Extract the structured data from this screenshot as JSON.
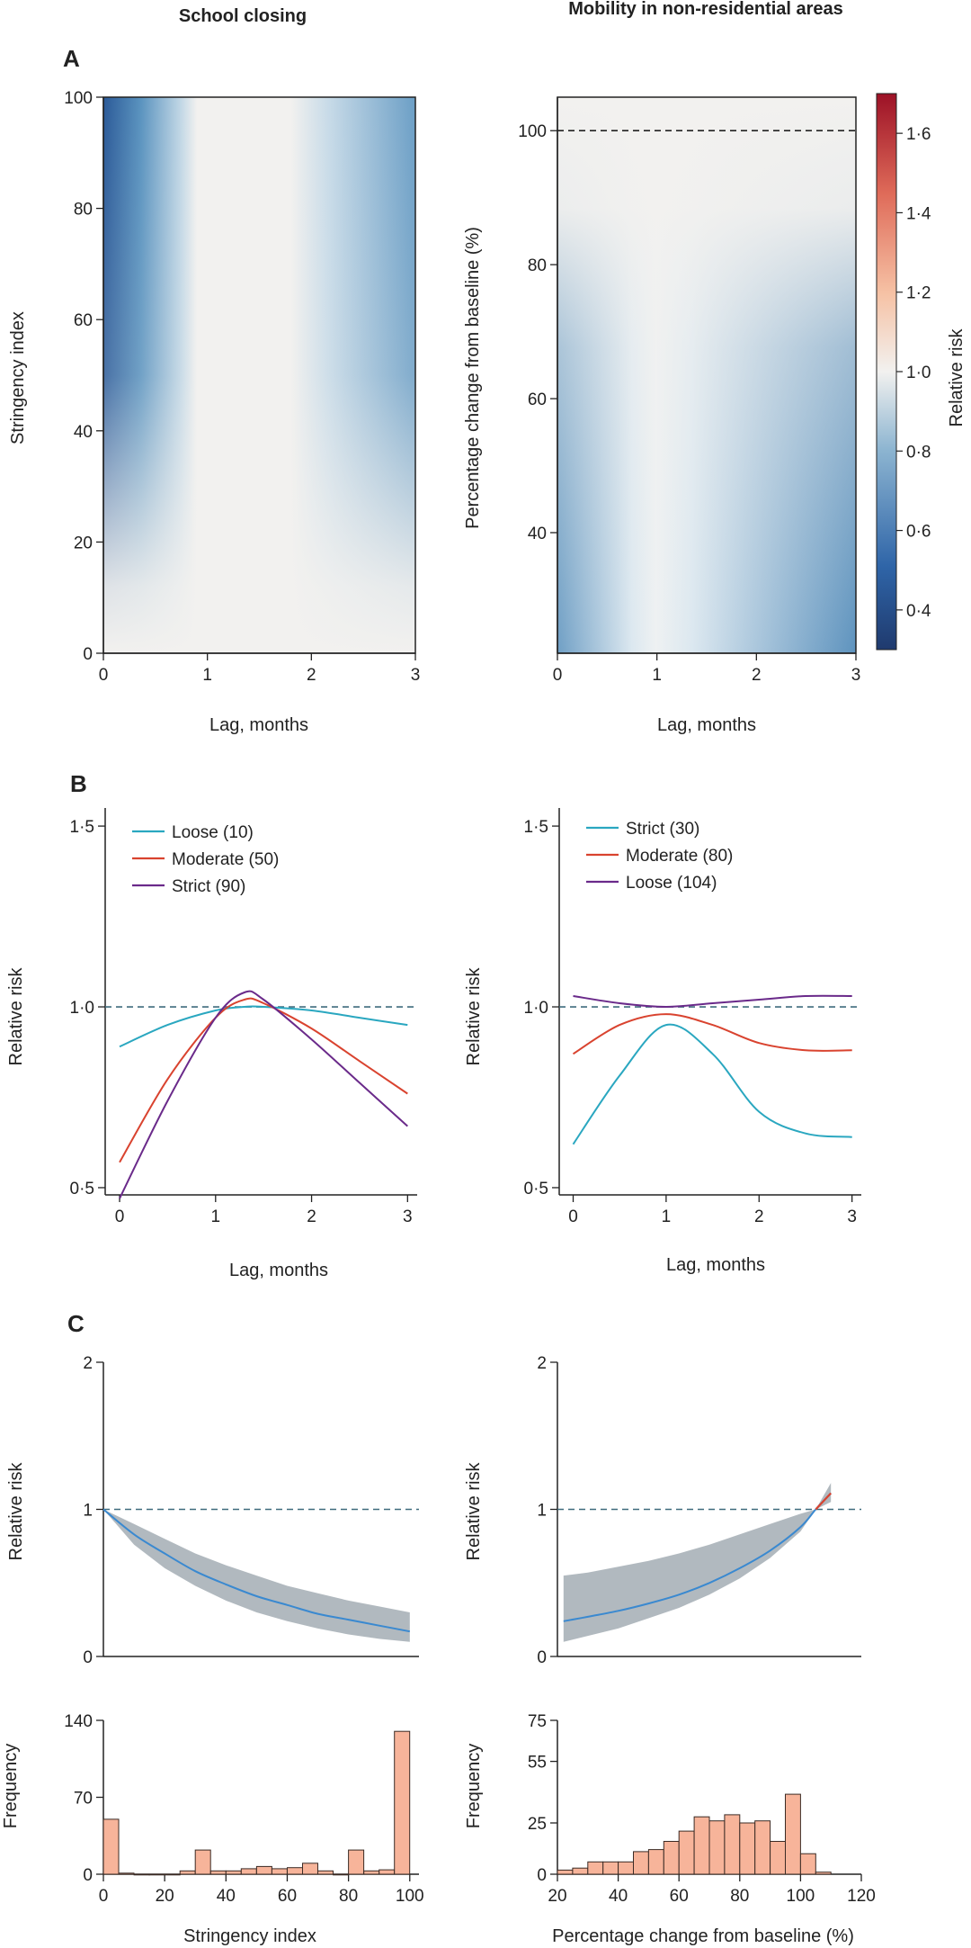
{
  "headers": {
    "left": "School closing",
    "right": "Mobility in non-residential areas"
  },
  "panels": {
    "a": "A",
    "b": "B",
    "c": "C"
  },
  "colors": {
    "neutral": "#f2f1ef",
    "deep_blue": "#1f3a6e",
    "mid_blue": "#5a93bf",
    "light_blue": "#dbe7ef",
    "deep_red": "#a4172b",
    "teal": "#2aa7c0",
    "red": "#d9432f",
    "purple": "#6a2a8a",
    "band": "#a9b1b8",
    "ci_line": "#3a89d0",
    "hist_fill": "#f7b49a",
    "hist_edge": "#3b2b25"
  },
  "chart_data": [
    {
      "id": "A-left",
      "type": "heatmap",
      "title": "School closing",
      "xlabel": "Lag, months",
      "ylabel": "Stringency index",
      "xlim": [
        0,
        3
      ],
      "ylim": [
        0,
        100
      ],
      "xticks": [
        "0",
        "1",
        "2",
        "3"
      ],
      "yticks": [
        "0",
        "20",
        "40",
        "60",
        "80",
        "100"
      ],
      "description_values": {
        "min_relative_risk": 0.3,
        "max_relative_risk": 1.0
      }
    },
    {
      "id": "A-right",
      "type": "heatmap",
      "title": "Mobility in non-residential areas",
      "xlabel": "Lag, months",
      "ylabel": "Percentage change from  baseline  (%)",
      "xlim": [
        0,
        3
      ],
      "ylim": [
        22,
        105
      ],
      "xticks": [
        "0",
        "1",
        "2",
        "3"
      ],
      "yticks": [
        "40",
        "60",
        "80",
        "100"
      ],
      "reference_line": 100,
      "colorbar": {
        "label": "Relative risk",
        "range": [
          0.3,
          1.7
        ],
        "ticks": [
          "0·4",
          "0·6",
          "0·8",
          "1·0",
          "1·2",
          "1·4",
          "1·6"
        ]
      }
    },
    {
      "id": "B-left",
      "type": "line",
      "xlabel": "Lag, months",
      "ylabel": "Relative risk",
      "xlim": [
        -0.15,
        3.1
      ],
      "ylim": [
        0.48,
        1.55
      ],
      "xticks": [
        "0",
        "1",
        "2",
        "3"
      ],
      "yticks": [
        "0·5",
        "1·0",
        "1·5"
      ],
      "reference_line": 1.0,
      "x": [
        0,
        0.5,
        1,
        1.3,
        1.5,
        2,
        2.5,
        3
      ],
      "series": [
        {
          "name": "Loose (10)",
          "color": "teal",
          "values": [
            0.89,
            0.95,
            0.99,
            1.0,
            1.0,
            0.99,
            0.97,
            0.95
          ]
        },
        {
          "name": "Moderate (50)",
          "color": "red",
          "values": [
            0.57,
            0.8,
            0.97,
            1.02,
            1.01,
            0.94,
            0.85,
            0.76
          ]
        },
        {
          "name": "Strict (90)",
          "color": "purple",
          "values": [
            0.47,
            0.74,
            0.97,
            1.04,
            1.02,
            0.91,
            0.79,
            0.67
          ]
        }
      ]
    },
    {
      "id": "B-right",
      "type": "line",
      "xlabel": "Lag, months",
      "ylabel": "Relative risk",
      "xlim": [
        -0.15,
        3.1
      ],
      "ylim": [
        0.48,
        1.55
      ],
      "xticks": [
        "0",
        "1",
        "2",
        "3"
      ],
      "yticks": [
        "0·5",
        "1·0",
        "1·5"
      ],
      "reference_line": 1.0,
      "x": [
        0,
        0.5,
        1,
        1.5,
        2,
        2.5,
        3
      ],
      "series": [
        {
          "name": "Strict (30)",
          "color": "teal",
          "values": [
            0.62,
            0.81,
            0.95,
            0.87,
            0.71,
            0.65,
            0.64
          ]
        },
        {
          "name": "Moderate (80)",
          "color": "red",
          "values": [
            0.87,
            0.95,
            0.98,
            0.95,
            0.9,
            0.88,
            0.88
          ]
        },
        {
          "name": "Loose (104)",
          "color": "purple",
          "values": [
            1.03,
            1.01,
            1.0,
            1.01,
            1.02,
            1.03,
            1.03
          ]
        }
      ]
    },
    {
      "id": "C-left",
      "type": "line",
      "xlabel": "",
      "ylabel": "Relative risk",
      "xlim": [
        0,
        103
      ],
      "ylim": [
        0,
        2
      ],
      "yticks": [
        "0",
        "1",
        "2"
      ],
      "reference_line": 1,
      "x": [
        0,
        10,
        20,
        30,
        40,
        50,
        60,
        70,
        80,
        90,
        100
      ],
      "series": [
        {
          "name": "estimate",
          "values": [
            1.0,
            0.83,
            0.7,
            0.58,
            0.49,
            0.41,
            0.35,
            0.29,
            0.25,
            0.21,
            0.17
          ]
        },
        {
          "name": "lower",
          "values": [
            1.0,
            0.76,
            0.6,
            0.48,
            0.38,
            0.3,
            0.24,
            0.19,
            0.15,
            0.12,
            0.1
          ]
        },
        {
          "name": "upper",
          "values": [
            1.0,
            0.9,
            0.8,
            0.7,
            0.62,
            0.55,
            0.48,
            0.43,
            0.38,
            0.34,
            0.3
          ]
        }
      ]
    },
    {
      "id": "C-right",
      "type": "line",
      "xlabel": "",
      "ylabel": "Relative risk",
      "xlim": [
        20,
        120
      ],
      "ylim": [
        0,
        2
      ],
      "yticks": [
        "0",
        "1",
        "2"
      ],
      "reference_line": 1,
      "x": [
        22,
        30,
        40,
        50,
        60,
        70,
        80,
        90,
        100,
        105,
        110
      ],
      "series": [
        {
          "name": "estimate",
          "values": [
            0.24,
            0.27,
            0.31,
            0.36,
            0.42,
            0.5,
            0.6,
            0.72,
            0.88,
            1.0,
            1.11
          ]
        },
        {
          "name": "lower",
          "values": [
            0.1,
            0.14,
            0.19,
            0.26,
            0.33,
            0.42,
            0.53,
            0.67,
            0.85,
            1.0,
            1.05
          ]
        },
        {
          "name": "upper",
          "values": [
            0.55,
            0.57,
            0.61,
            0.65,
            0.7,
            0.76,
            0.83,
            0.9,
            0.97,
            1.0,
            1.18
          ]
        }
      ]
    },
    {
      "id": "C-left-hist",
      "type": "bar",
      "xlabel": "Stringency index",
      "ylabel": "Frequency",
      "xlim": [
        0,
        103
      ],
      "ylim": [
        0,
        140
      ],
      "xticks": [
        "0",
        "20",
        "40",
        "60",
        "80",
        "100"
      ],
      "yticks": [
        "0",
        "70",
        "140"
      ],
      "bin_width": 5,
      "bin_starts": [
        0,
        5,
        10,
        15,
        20,
        25,
        30,
        35,
        40,
        45,
        50,
        55,
        60,
        65,
        70,
        75,
        80,
        85,
        90,
        95
      ],
      "values": [
        50,
        1,
        0,
        0,
        0,
        3,
        22,
        3,
        3,
        5,
        7,
        5,
        6,
        10,
        3,
        0,
        22,
        3,
        4,
        130
      ]
    },
    {
      "id": "C-right-hist",
      "type": "bar",
      "xlabel": "Percentage change from  baseline (%)",
      "ylabel": "Frequency",
      "xlim": [
        20,
        120
      ],
      "ylim": [
        0,
        75
      ],
      "xticks": [
        "20",
        "40",
        "60",
        "80",
        "100",
        "120"
      ],
      "yticks": [
        "0",
        "25",
        "55",
        "75"
      ],
      "bin_width": 5,
      "bin_starts": [
        20,
        25,
        30,
        35,
        40,
        45,
        50,
        55,
        60,
        65,
        70,
        75,
        80,
        85,
        90,
        95,
        100,
        105
      ],
      "values": [
        2,
        3,
        6,
        6,
        6,
        11,
        12,
        16,
        21,
        28,
        26,
        29,
        25,
        26,
        16,
        39,
        10,
        1
      ]
    }
  ]
}
